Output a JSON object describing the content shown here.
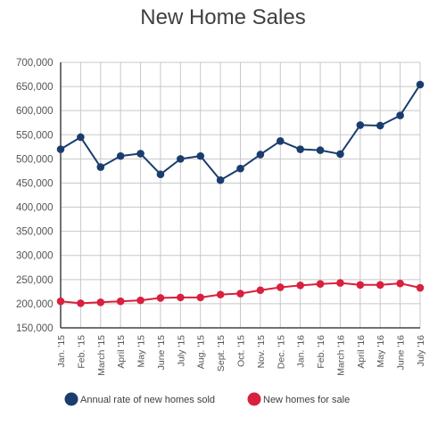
{
  "chart_data": {
    "type": "line",
    "title": "New Home Sales",
    "categories": [
      "Jan. '15",
      "Feb. '15",
      "March '15",
      "April '15",
      "May '15",
      "June '15",
      "July '15",
      "Aug. '15",
      "Sept. '15",
      "Oct. '15",
      "Nov. '15",
      "Dec. '15",
      "Jan. '16",
      "Feb. '16",
      "March '16",
      "April '16",
      "May '16",
      "June '16",
      "July '16"
    ],
    "series": [
      {
        "name": "Annual rate of new homes sold",
        "color": "#1b3d6d",
        "values": [
          520000,
          545000,
          483000,
          506000,
          511000,
          468000,
          500000,
          506000,
          456000,
          480000,
          509000,
          537000,
          520000,
          518000,
          510000,
          570000,
          569000,
          590000,
          654000
        ]
      },
      {
        "name": "New homes for sale",
        "color": "#d9203e",
        "values": [
          205000,
          201000,
          203000,
          205000,
          207000,
          212000,
          213000,
          213000,
          219000,
          221000,
          228000,
          234000,
          238000,
          241000,
          243000,
          239000,
          239000,
          242000,
          233000
        ]
      }
    ],
    "y_ticks": [
      "700,000",
      "650,000",
      "600,000",
      "550,000",
      "500,000",
      "450,000",
      "400,000",
      "350,000",
      "300,000",
      "250,000",
      "200,000",
      "150,000"
    ],
    "ylim": [
      150000,
      700000
    ],
    "grid": true,
    "legend_position": "bottom"
  }
}
